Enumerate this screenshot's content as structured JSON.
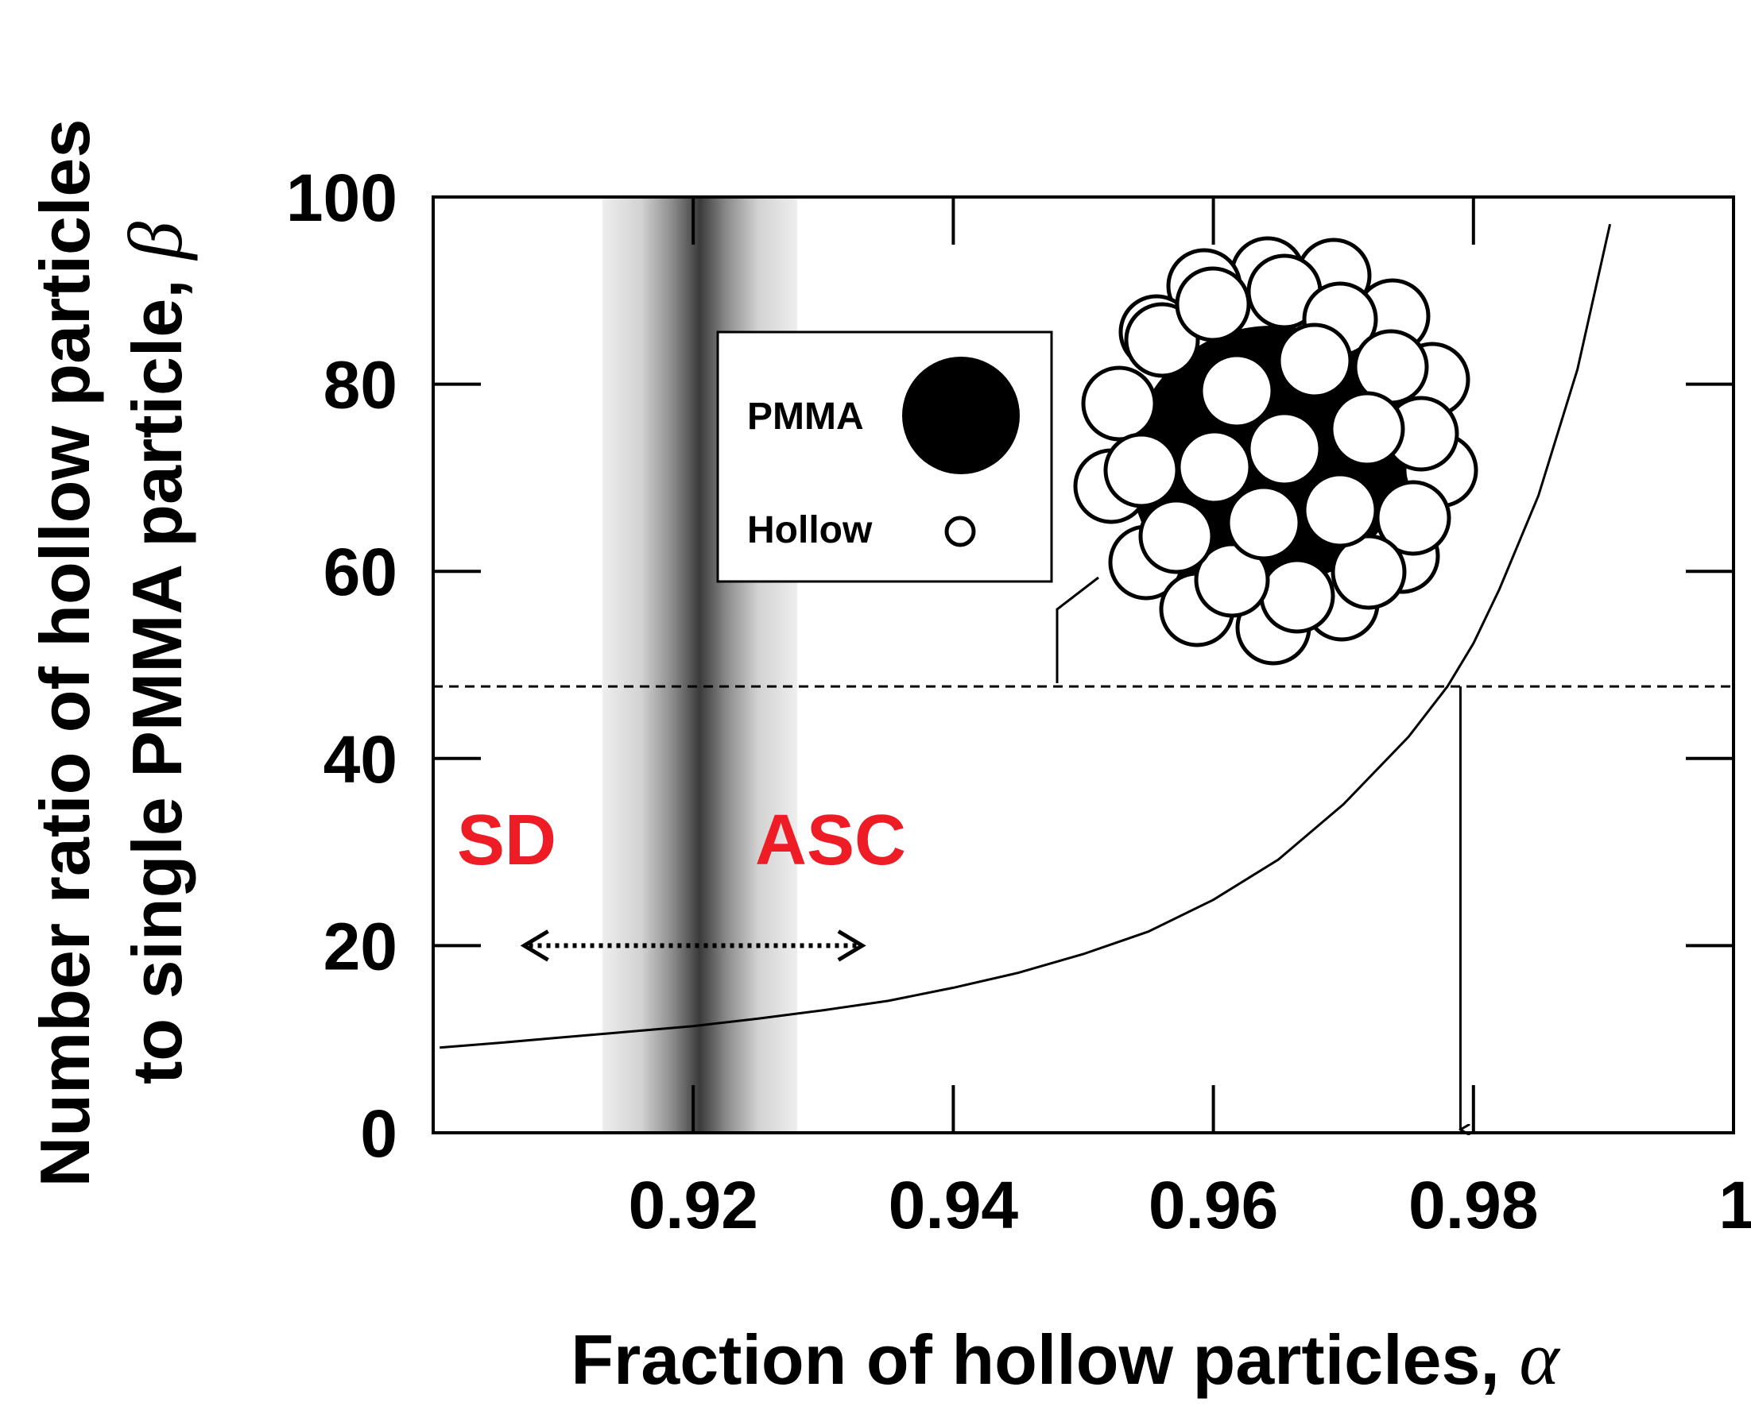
{
  "chart_data": {
    "type": "line",
    "xlabel": "Fraction of hollow particles, ",
    "xlabel_symbol": "α",
    "ylabel_line1": "Number ratio of hollow particles",
    "ylabel_line2": "to single PMMA particle, ",
    "ylabel_symbol": "β",
    "xlim": [
      0.9,
      1.0
    ],
    "ylim": [
      0,
      100
    ],
    "x_ticks": [
      0.92,
      0.94,
      0.96,
      0.98,
      1.0
    ],
    "x_tick_labels": [
      "0.92",
      "0.94",
      "0.96",
      "0.98",
      "1"
    ],
    "y_ticks": [
      0,
      20,
      40,
      60,
      80,
      100
    ],
    "y_tick_labels": [
      "0",
      "20",
      "40",
      "60",
      "80",
      "100"
    ],
    "grid": false,
    "series": [
      {
        "x": [
          0.9005,
          0.905,
          0.91,
          0.915,
          0.92,
          0.925,
          0.93,
          0.935,
          0.94,
          0.945,
          0.95,
          0.955,
          0.96,
          0.965,
          0.97,
          0.975,
          0.978,
          0.98,
          0.982,
          0.985,
          0.988,
          0.9905
        ],
        "values": [
          9.1,
          9.6,
          10.2,
          10.8,
          11.4,
          12.2,
          13.1,
          14.1,
          15.5,
          17.1,
          19.1,
          21.5,
          24.9,
          29.2,
          35.1,
          42.3,
          47.7,
          52.3,
          58.1,
          68.1,
          81.6,
          97.1
        ]
      }
    ],
    "reference": {
      "alpha": 0.979,
      "beta": 47.7
    },
    "transition_band": {
      "center": 0.9205,
      "from": 0.913,
      "to": 0.928
    },
    "annotations": {
      "left_label": "SD",
      "right_label": "ASC",
      "label_color": "#ee1c25",
      "arrow_range": [
        0.907,
        0.933
      ],
      "arrow_y": 20
    },
    "legend": {
      "placement": "upper-middle",
      "items": [
        {
          "label": "PMMA",
          "marker": "large-filled-circle"
        },
        {
          "label": "Hollow",
          "marker": "small-open-circle"
        }
      ]
    },
    "inset": "aggregate-illustration"
  }
}
